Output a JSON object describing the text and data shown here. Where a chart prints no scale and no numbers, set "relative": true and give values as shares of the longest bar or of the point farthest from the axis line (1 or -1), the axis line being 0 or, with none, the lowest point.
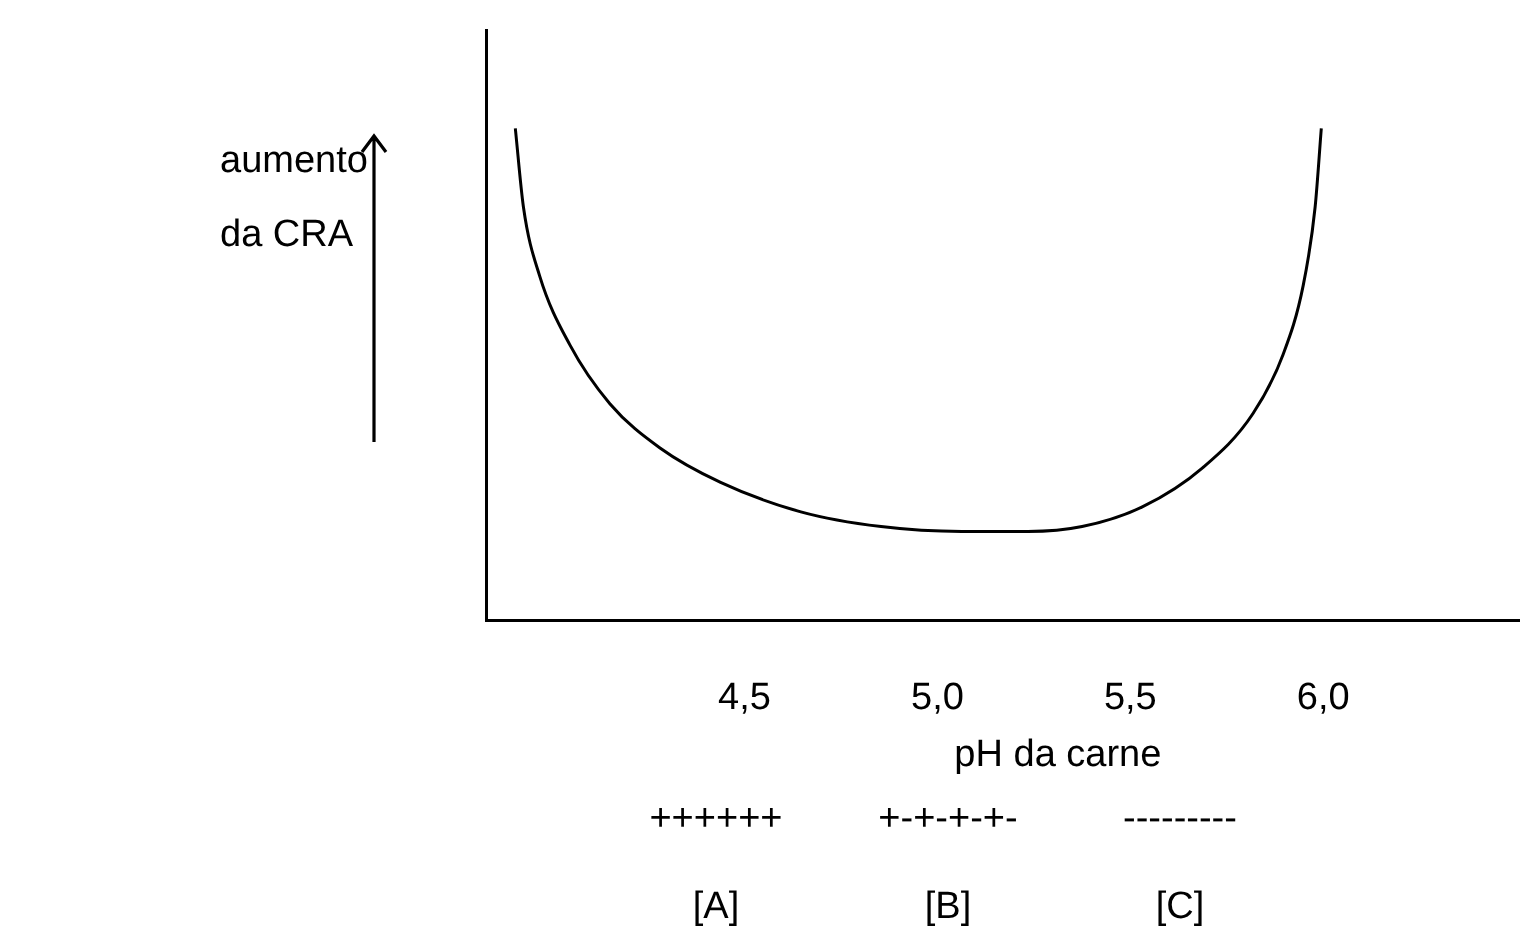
{
  "chart_data": {
    "type": "line",
    "relative": true,
    "xlabel": "pH da carne",
    "ylabel": "aumento da CRA",
    "xlim": [
      3.83,
      6.51
    ],
    "xticks": [
      {
        "value": 4.5,
        "label": "4,5"
      },
      {
        "value": 5.0,
        "label": "5,0"
      },
      {
        "value": 5.5,
        "label": "5,5"
      },
      {
        "value": 6.0,
        "label": "6,0"
      }
    ],
    "x": [
      3.906,
      3.927,
      3.969,
      4.047,
      4.151,
      4.281,
      4.438,
      4.646,
      4.854,
      5.063,
      5.234,
      5.375,
      5.531,
      5.688,
      5.818,
      5.896,
      5.948,
      5.979,
      5.995
    ],
    "series": [
      {
        "color": "#000000",
        "values": [
          1,
          0.84,
          0.7,
          0.56,
          0.44,
          0.35,
          0.28,
          0.22,
          0.19,
          0.18,
          0.18,
          0.19,
          0.23,
          0.31,
          0.42,
          0.54,
          0.68,
          0.84,
          1
        ]
      }
    ],
    "annotations": [
      "++++++",
      "[A]",
      "+-+-+-+-",
      "[B]",
      "---------",
      "[C]"
    ],
    "grid": false,
    "legend": false,
    "marker": "none",
    "line_style": "solid"
  }
}
